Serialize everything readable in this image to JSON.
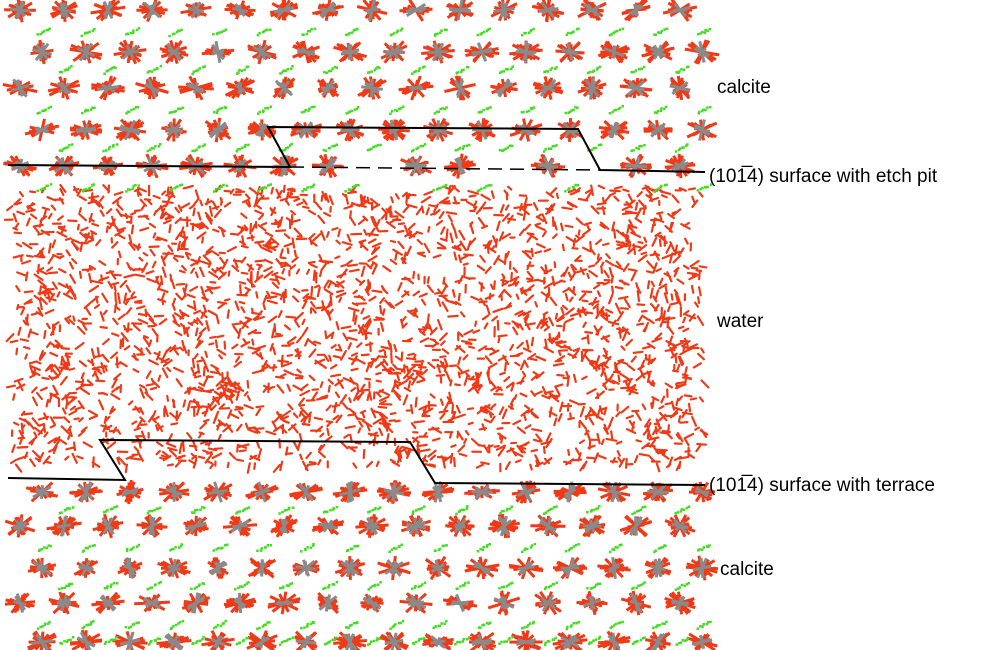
{
  "labels": {
    "top_crystal": "calcite",
    "top_surface": "(101̅4) surface with etch pit",
    "water": "water",
    "bottom_surface": "(101̅4) surface with terrace",
    "bottom_crystal": "calcite"
  }
}
